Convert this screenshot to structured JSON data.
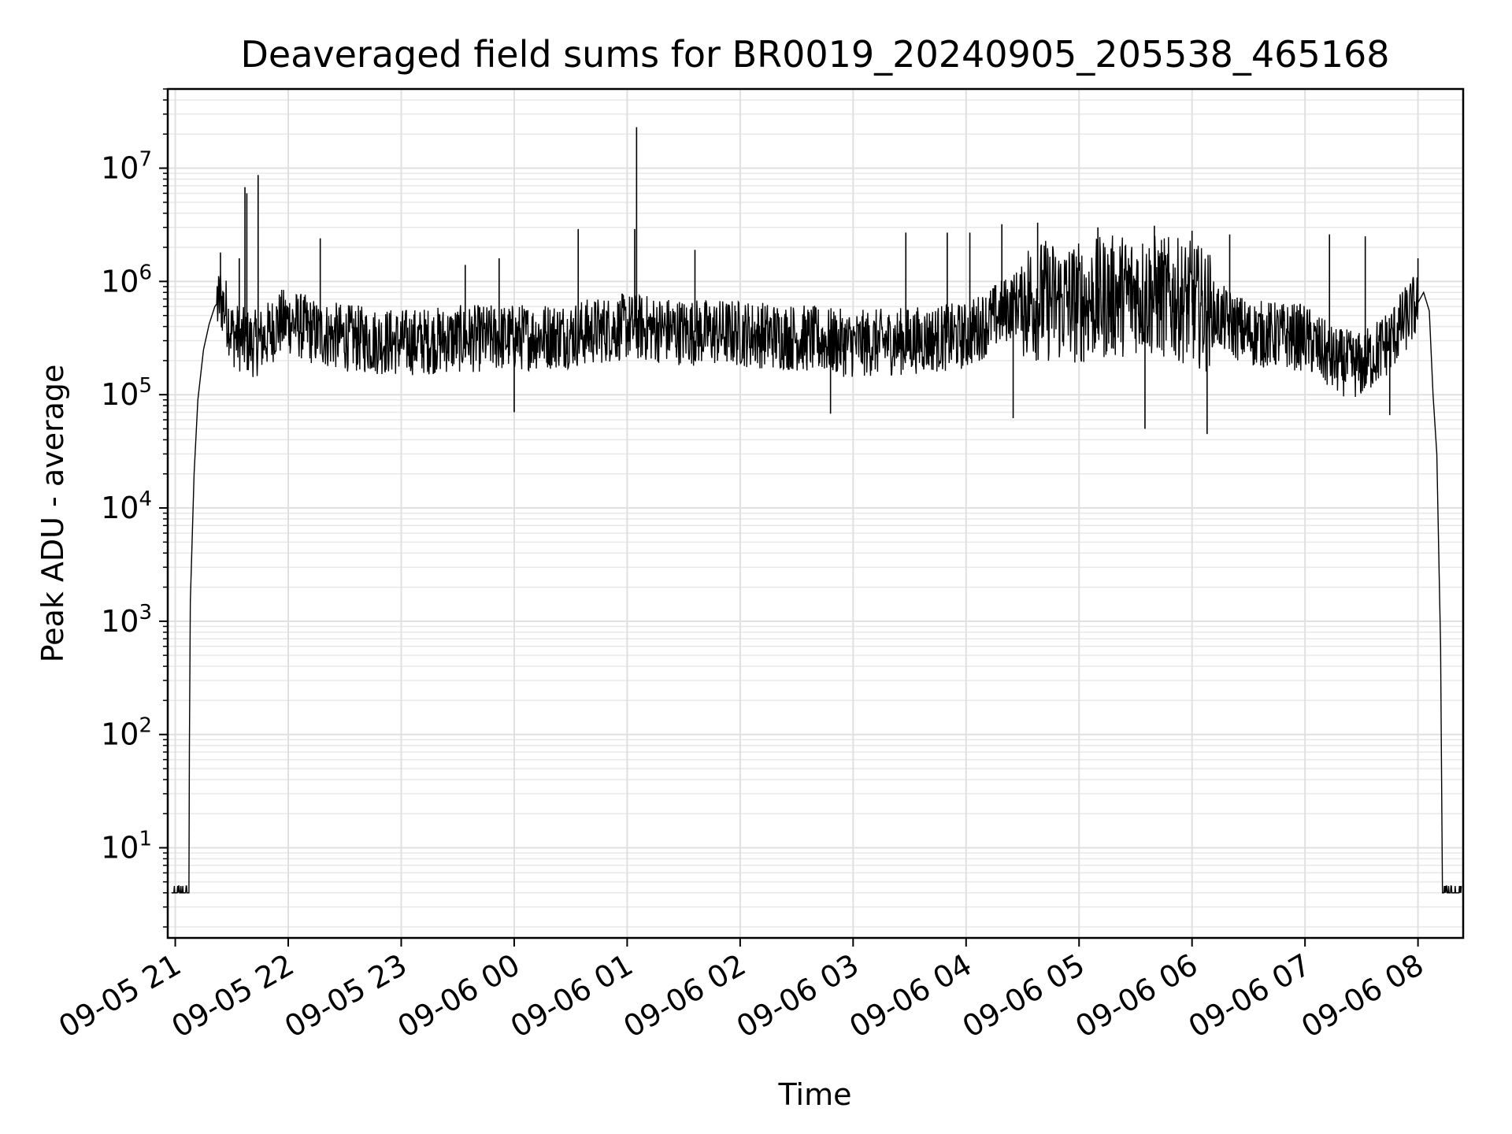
{
  "chart_data": {
    "type": "line",
    "title": "Deaveraged field sums for BR0019_20240905_205538_465168",
    "xlabel": "Time",
    "ylabel": "Peak ADU - average",
    "yscale": "log",
    "ylim": [
      1.6,
      50000000
    ],
    "xlim": [
      "09-05 20:56",
      "09-06 08:24"
    ],
    "grid": true,
    "x_ticks": [
      {
        "label": "09-05 21",
        "t": "09-05 21:00"
      },
      {
        "label": "09-05 22",
        "t": "09-05 22:00"
      },
      {
        "label": "09-05 23",
        "t": "09-05 23:00"
      },
      {
        "label": "09-06 00",
        "t": "09-06 00:00"
      },
      {
        "label": "09-06 01",
        "t": "09-06 01:00"
      },
      {
        "label": "09-06 02",
        "t": "09-06 02:00"
      },
      {
        "label": "09-06 03",
        "t": "09-06 03:00"
      },
      {
        "label": "09-06 04",
        "t": "09-06 04:00"
      },
      {
        "label": "09-06 05",
        "t": "09-06 05:00"
      },
      {
        "label": "09-06 06",
        "t": "09-06 06:00"
      },
      {
        "label": "09-06 07",
        "t": "09-06 07:00"
      },
      {
        "label": "09-06 08",
        "t": "09-06 08:00"
      }
    ],
    "y_ticks": [
      {
        "base": "10",
        "exp": "1",
        "value": 10
      },
      {
        "base": "10",
        "exp": "2",
        "value": 100
      },
      {
        "base": "10",
        "exp": "3",
        "value": 1000
      },
      {
        "base": "10",
        "exp": "4",
        "value": 10000
      },
      {
        "base": "10",
        "exp": "5",
        "value": 100000
      },
      {
        "base": "10",
        "exp": "6",
        "value": 1000000
      },
      {
        "base": "10",
        "exp": "7",
        "value": 10000000
      }
    ],
    "series": [
      {
        "color": "#000000",
        "points": [
          [
            "09-05 20:58",
            4
          ],
          [
            "09-05 21:07",
            4
          ],
          [
            "09-05 21:08",
            1500
          ],
          [
            "09-05 21:10",
            20000
          ],
          [
            "09-05 21:12",
            90000
          ],
          [
            "09-05 21:15",
            250000
          ],
          [
            "09-05 21:18",
            420000
          ],
          [
            "09-05 21:21",
            600000
          ],
          [
            "09-05 21:24",
            700000
          ],
          [
            "09-05 21:27",
            550000
          ],
          [
            "09-05 21:30",
            350000
          ],
          [
            "09-05 21:36",
            300000
          ],
          [
            "09-05 21:42",
            280000
          ],
          [
            "09-05 21:48",
            320000
          ],
          [
            "09-05 21:54",
            420000
          ],
          [
            "09-05 22:00",
            450000
          ],
          [
            "09-05 22:15",
            350000
          ],
          [
            "09-05 22:30",
            320000
          ],
          [
            "09-05 22:45",
            300000
          ],
          [
            "09-05 23:00",
            290000
          ],
          [
            "09-05 23:30",
            310000
          ],
          [
            "09-06 00:00",
            320000
          ],
          [
            "09-06 00:30",
            340000
          ],
          [
            "09-06 01:00",
            400000
          ],
          [
            "09-06 01:30",
            360000
          ],
          [
            "09-06 02:00",
            350000
          ],
          [
            "09-06 02:30",
            320000
          ],
          [
            "09-06 03:00",
            280000
          ],
          [
            "09-06 03:30",
            300000
          ],
          [
            "09-06 04:00",
            330000
          ],
          [
            "09-06 04:30",
            700000
          ],
          [
            "09-06 05:00",
            650000
          ],
          [
            "09-06 05:30",
            800000
          ],
          [
            "09-06 06:00",
            650000
          ],
          [
            "09-06 06:30",
            350000
          ],
          [
            "09-06 07:00",
            320000
          ],
          [
            "09-06 07:15",
            200000
          ],
          [
            "09-06 07:30",
            180000
          ],
          [
            "09-06 07:45",
            300000
          ],
          [
            "09-06 08:00",
            650000
          ],
          [
            "09-06 08:03",
            800000
          ],
          [
            "09-06 08:06",
            550000
          ],
          [
            "09-06 08:08",
            100000
          ],
          [
            "09-06 08:10",
            30000
          ],
          [
            "09-06 08:12",
            600
          ],
          [
            "09-06 08:13",
            4
          ],
          [
            "09-06 08:23",
            4
          ]
        ],
        "spikes": [
          [
            "09-05 21:37",
            6800000
          ],
          [
            "09-05 21:38",
            6000000
          ],
          [
            "09-05 21:44",
            8700000
          ],
          [
            "09-05 21:24",
            1800000
          ],
          [
            "09-05 21:34",
            1600000
          ],
          [
            "09-05 22:17",
            2400000
          ],
          [
            "09-05 23:34",
            1400000
          ],
          [
            "09-05 23:52",
            1600000
          ],
          [
            "09-06 00:34",
            2900000
          ],
          [
            "09-06 01:05",
            23000000
          ],
          [
            "09-06 01:04",
            2900000
          ],
          [
            "09-06 01:36",
            1900000
          ],
          [
            "09-06 03:28",
            2700000
          ],
          [
            "09-06 03:50",
            2700000
          ],
          [
            "09-06 04:02",
            2700000
          ],
          [
            "09-06 04:19",
            3200000
          ],
          [
            "09-06 04:38",
            3300000
          ],
          [
            "09-06 05:10",
            3000000
          ],
          [
            "09-06 05:40",
            3100000
          ],
          [
            "09-06 06:00",
            2800000
          ],
          [
            "09-06 06:20",
            2600000
          ],
          [
            "09-06 07:13",
            2600000
          ],
          [
            "09-06 07:32",
            2500000
          ],
          [
            "09-06 08:00",
            1600000
          ]
        ],
        "dips": [
          [
            "09-06 04:25",
            62000
          ],
          [
            "09-06 05:35",
            50000
          ],
          [
            "09-06 06:08",
            45000
          ],
          [
            "09-06 07:45",
            66000
          ],
          [
            "09-06 02:48",
            68000
          ],
          [
            "09-06 00:00",
            70000
          ]
        ]
      }
    ]
  }
}
